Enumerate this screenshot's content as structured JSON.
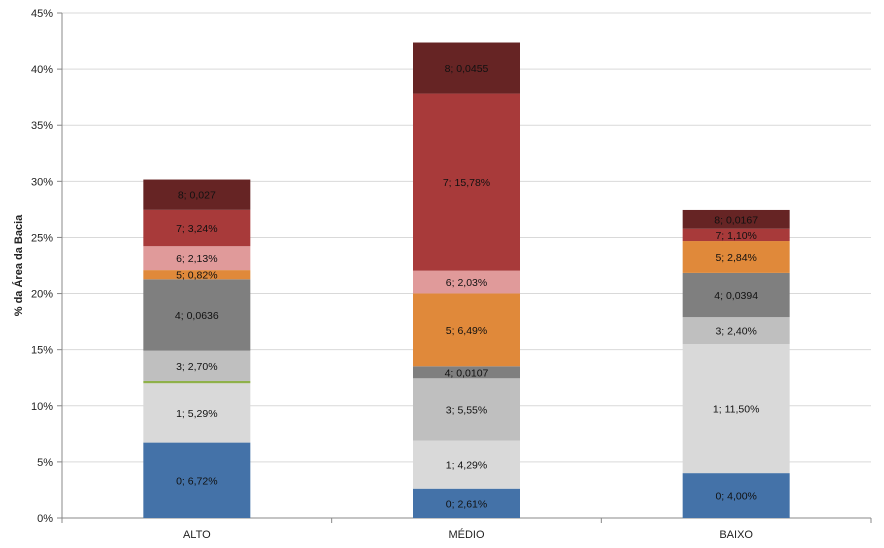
{
  "chart_data": {
    "type": "bar",
    "stacked": true,
    "title": "",
    "xlabel": "",
    "ylabel": "% da Área da Bacia",
    "ylim": [
      0,
      45
    ],
    "yticks": [
      "0%",
      "5%",
      "10%",
      "15%",
      "20%",
      "25%",
      "30%",
      "35%",
      "40%",
      "45%"
    ],
    "grid": true,
    "legend": "none",
    "categories": [
      "ALTO",
      "MÉDIO",
      "BAIXO"
    ],
    "series": [
      {
        "color": "#4472a8",
        "values": [
          6.72,
          2.61,
          4.0
        ],
        "labels": [
          "0; 6,72%",
          "0; 2,61%",
          "0; 4,00%"
        ]
      },
      {
        "color": "#d9d9d9",
        "values": [
          5.29,
          4.29,
          11.5
        ],
        "labels": [
          "1; 5,29%",
          "1; 4,29%",
          "1; 11,50%"
        ]
      },
      {
        "color": "#8fb14a",
        "values": [
          0.2,
          0.0,
          0.0
        ],
        "labels": [
          "",
          "",
          ""
        ]
      },
      {
        "color": "#bfbfbf",
        "values": [
          2.7,
          5.55,
          2.4
        ],
        "labels": [
          "3; 2,70%",
          "3; 5,55%",
          "3; 2,40%"
        ]
      },
      {
        "color": "#7f7f7f",
        "values": [
          6.36,
          1.07,
          3.94
        ],
        "labels": [
          "4; 0,0636",
          "4; 0,0107",
          "4; 0,0394"
        ]
      },
      {
        "color": "#e0893a",
        "values": [
          0.82,
          6.49,
          2.84
        ],
        "labels": [
          "5; 0,82%",
          "5; 6,49%",
          "5; 2,84%"
        ]
      },
      {
        "color": "#e09a9a",
        "values": [
          2.13,
          2.03,
          0.0
        ],
        "labels": [
          "6; 2,13%",
          "6; 2,03%",
          ""
        ]
      },
      {
        "color": "#a83a3a",
        "values": [
          3.24,
          15.78,
          1.1
        ],
        "labels": [
          "7; 3,24%",
          "7; 15,78%",
          "7; 1,10%"
        ]
      },
      {
        "color": "#662424",
        "values": [
          2.7,
          4.55,
          1.67
        ],
        "labels": [
          "8; 0,027",
          "8; 0,0455",
          "8; 0,0167"
        ]
      }
    ]
  }
}
